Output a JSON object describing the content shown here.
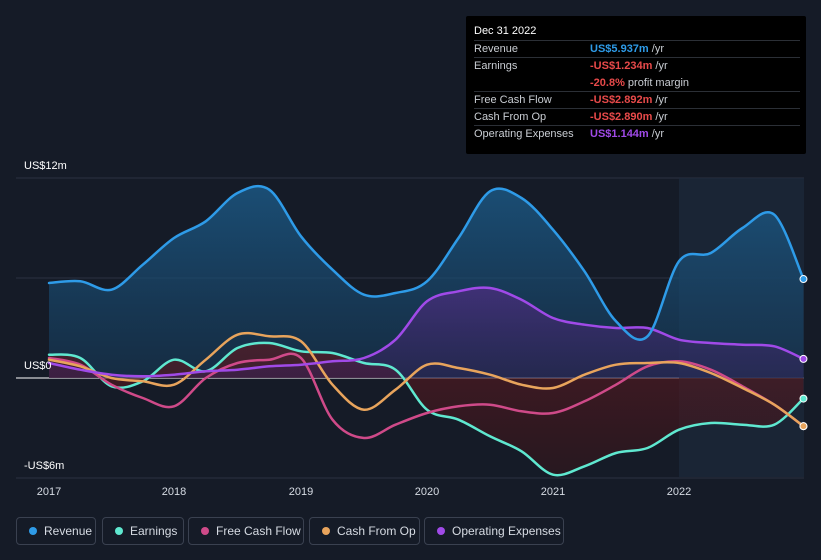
{
  "chart_data": {
    "type": "area",
    "title": "",
    "y_unit_labels": {
      "top": "US$12m",
      "zero": "US$0",
      "bottom": "-US$6m"
    },
    "ylim": [
      -6.0,
      12.0
    ],
    "xlim": [
      2016.9,
      2022.98
    ],
    "x_ticks": [
      2017,
      2018,
      2019,
      2020,
      2021,
      2022
    ],
    "x_tick_labels": [
      "2017",
      "2018",
      "2019",
      "2020",
      "2021",
      "2022"
    ],
    "forecast_shade_start": 2022.0,
    "series": [
      {
        "name": "Revenue",
        "color": "#2e9be8",
        "points": [
          [
            2017.0,
            5.7
          ],
          [
            2017.25,
            5.8
          ],
          [
            2017.5,
            5.3
          ],
          [
            2017.75,
            6.8
          ],
          [
            2018.0,
            8.4
          ],
          [
            2018.25,
            9.4
          ],
          [
            2018.5,
            11.1
          ],
          [
            2018.75,
            11.3
          ],
          [
            2019.0,
            8.5
          ],
          [
            2019.25,
            6.5
          ],
          [
            2019.5,
            5.0
          ],
          [
            2019.75,
            5.1
          ],
          [
            2020.0,
            5.8
          ],
          [
            2020.25,
            8.4
          ],
          [
            2020.5,
            11.2
          ],
          [
            2020.75,
            10.8
          ],
          [
            2021.0,
            8.9
          ],
          [
            2021.25,
            6.4
          ],
          [
            2021.5,
            3.4
          ],
          [
            2021.75,
            2.5
          ],
          [
            2022.0,
            7.0
          ],
          [
            2022.25,
            7.5
          ],
          [
            2022.5,
            9.0
          ],
          [
            2022.75,
            9.8
          ],
          [
            2022.98,
            5.937
          ]
        ]
      },
      {
        "name": "Earnings",
        "color": "#5fe8d0",
        "points": [
          [
            2017.0,
            1.4
          ],
          [
            2017.25,
            1.2
          ],
          [
            2017.5,
            -0.5
          ],
          [
            2017.75,
            -0.2
          ],
          [
            2018.0,
            1.1
          ],
          [
            2018.25,
            0.4
          ],
          [
            2018.5,
            1.8
          ],
          [
            2018.75,
            2.1
          ],
          [
            2019.0,
            1.6
          ],
          [
            2019.25,
            1.5
          ],
          [
            2019.5,
            0.9
          ],
          [
            2019.75,
            0.5
          ],
          [
            2020.0,
            -1.9
          ],
          [
            2020.25,
            -2.5
          ],
          [
            2020.5,
            -3.5
          ],
          [
            2020.75,
            -4.4
          ],
          [
            2021.0,
            -5.8
          ],
          [
            2021.25,
            -5.3
          ],
          [
            2021.5,
            -4.5
          ],
          [
            2021.75,
            -4.2
          ],
          [
            2022.0,
            -3.1
          ],
          [
            2022.25,
            -2.7
          ],
          [
            2022.5,
            -2.8
          ],
          [
            2022.75,
            -2.8
          ],
          [
            2022.98,
            -1.234
          ]
        ]
      },
      {
        "name": "Free Cash Flow",
        "color": "#cf4a89",
        "points": [
          [
            2017.0,
            1.2
          ],
          [
            2017.25,
            0.8
          ],
          [
            2017.5,
            -0.4
          ],
          [
            2017.75,
            -1.2
          ],
          [
            2018.0,
            -1.7
          ],
          [
            2018.25,
            0.0
          ],
          [
            2018.5,
            0.9
          ],
          [
            2018.75,
            1.1
          ],
          [
            2019.0,
            1.2
          ],
          [
            2019.25,
            -2.5
          ],
          [
            2019.5,
            -3.6
          ],
          [
            2019.75,
            -2.8
          ],
          [
            2020.0,
            -2.1
          ],
          [
            2020.25,
            -1.7
          ],
          [
            2020.5,
            -1.6
          ],
          [
            2020.75,
            -2.0
          ],
          [
            2021.0,
            -2.1
          ],
          [
            2021.25,
            -1.4
          ],
          [
            2021.5,
            -0.4
          ],
          [
            2021.75,
            0.7
          ],
          [
            2022.0,
            1.0
          ],
          [
            2022.25,
            0.5
          ],
          [
            2022.5,
            -0.5
          ],
          [
            2022.75,
            -1.6
          ],
          [
            2022.98,
            -2.892
          ]
        ]
      },
      {
        "name": "Cash From Op",
        "color": "#e8a45c",
        "points": [
          [
            2017.0,
            1.1
          ],
          [
            2017.25,
            0.7
          ],
          [
            2017.5,
            0.0
          ],
          [
            2017.75,
            -0.2
          ],
          [
            2018.0,
            -0.4
          ],
          [
            2018.25,
            1.1
          ],
          [
            2018.5,
            2.6
          ],
          [
            2018.75,
            2.5
          ],
          [
            2019.0,
            2.2
          ],
          [
            2019.25,
            -0.4
          ],
          [
            2019.5,
            -1.9
          ],
          [
            2019.75,
            -0.7
          ],
          [
            2020.0,
            0.8
          ],
          [
            2020.25,
            0.6
          ],
          [
            2020.5,
            0.2
          ],
          [
            2020.75,
            -0.4
          ],
          [
            2021.0,
            -0.6
          ],
          [
            2021.25,
            0.2
          ],
          [
            2021.5,
            0.8
          ],
          [
            2021.75,
            0.9
          ],
          [
            2022.0,
            0.9
          ],
          [
            2022.25,
            0.3
          ],
          [
            2022.5,
            -0.6
          ],
          [
            2022.75,
            -1.6
          ],
          [
            2022.98,
            -2.89
          ]
        ]
      },
      {
        "name": "Operating Expenses",
        "color": "#a04ae8",
        "points": [
          [
            2017.0,
            0.9
          ],
          [
            2017.25,
            0.5
          ],
          [
            2017.5,
            0.2
          ],
          [
            2017.75,
            0.1
          ],
          [
            2018.0,
            0.2
          ],
          [
            2018.25,
            0.4
          ],
          [
            2018.5,
            0.5
          ],
          [
            2018.75,
            0.7
          ],
          [
            2019.0,
            0.8
          ],
          [
            2019.25,
            1.0
          ],
          [
            2019.5,
            1.2
          ],
          [
            2019.75,
            2.3
          ],
          [
            2020.0,
            4.6
          ],
          [
            2020.25,
            5.2
          ],
          [
            2020.5,
            5.4
          ],
          [
            2020.75,
            4.7
          ],
          [
            2021.0,
            3.6
          ],
          [
            2021.25,
            3.2
          ],
          [
            2021.5,
            3.0
          ],
          [
            2021.75,
            3.0
          ],
          [
            2022.0,
            2.3
          ],
          [
            2022.25,
            2.1
          ],
          [
            2022.5,
            2.0
          ],
          [
            2022.75,
            1.9
          ],
          [
            2022.98,
            1.144
          ]
        ]
      }
    ]
  },
  "tooltip": {
    "date": "Dec 31 2022",
    "rows": [
      {
        "label": "Revenue",
        "value": "US$5.937m",
        "unit": " /yr",
        "color": "#2e9be8"
      },
      {
        "label": "Earnings",
        "value": "-US$1.234m",
        "unit": " /yr",
        "color": "#e84a4a"
      },
      {
        "label": "",
        "value": "-20.8%",
        "unit": " profit margin",
        "color": "#e84a4a"
      },
      {
        "label": "Free Cash Flow",
        "value": "-US$2.892m",
        "unit": " /yr",
        "color": "#e84a4a"
      },
      {
        "label": "Cash From Op",
        "value": "-US$2.890m",
        "unit": " /yr",
        "color": "#e84a4a"
      },
      {
        "label": "Operating Expenses",
        "value": "US$1.144m",
        "unit": " /yr",
        "color": "#a04ae8"
      }
    ]
  },
  "legend": [
    {
      "label": "Revenue",
      "color": "#2e9be8"
    },
    {
      "label": "Earnings",
      "color": "#5fe8d0"
    },
    {
      "label": "Free Cash Flow",
      "color": "#cf4a89"
    },
    {
      "label": "Cash From Op",
      "color": "#e8a45c"
    },
    {
      "label": "Operating Expenses",
      "color": "#a04ae8"
    }
  ]
}
